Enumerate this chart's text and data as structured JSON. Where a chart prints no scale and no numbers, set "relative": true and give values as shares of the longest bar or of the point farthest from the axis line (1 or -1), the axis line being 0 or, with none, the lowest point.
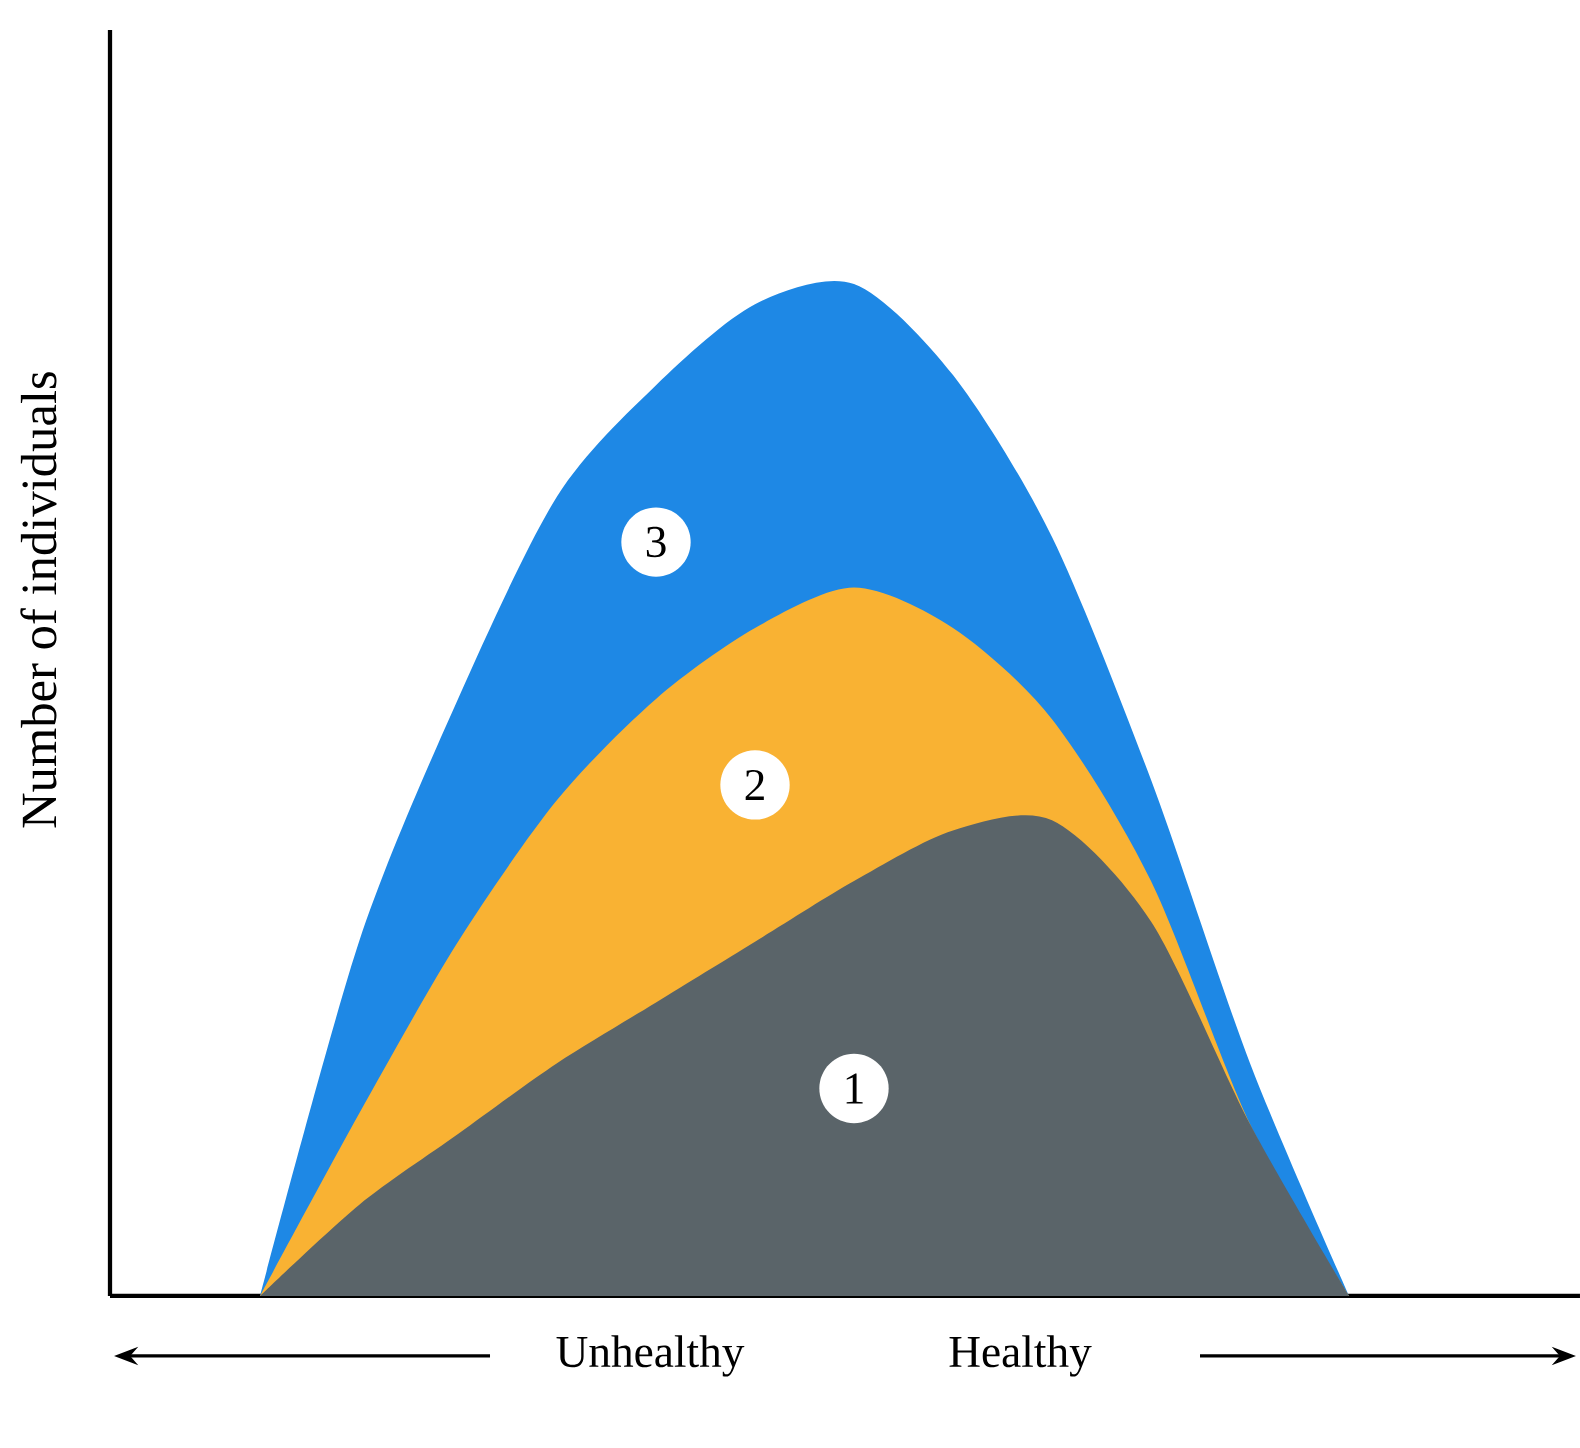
{
  "chart_data": {
    "type": "area",
    "relative": true,
    "ylabel": "Number of individuals",
    "categories": [
      null,
      null,
      null,
      null,
      null,
      null,
      null,
      null,
      null,
      null,
      null,
      null
    ],
    "series": [
      {
        "name": "3",
        "color": "#1e88e5",
        "values": [
          0,
          0.35,
          0.59,
          0.79,
          0.9,
          0.98,
          1.0,
          0.91,
          0.75,
          0.51,
          0.23,
          0
        ]
      },
      {
        "name": "2",
        "color": "#f9b233",
        "values": [
          0,
          0.18,
          0.35,
          0.49,
          0.59,
          0.66,
          0.7,
          0.66,
          0.57,
          0.41,
          0.17,
          0
        ]
      },
      {
        "name": "1",
        "color": "#5a6469",
        "values": [
          0,
          0.09,
          0.16,
          0.23,
          0.29,
          0.35,
          0.41,
          0.46,
          0.47,
          0.37,
          0.17,
          0
        ]
      }
    ],
    "annotations": [
      "Unhealthy",
      "Healthy"
    ]
  }
}
